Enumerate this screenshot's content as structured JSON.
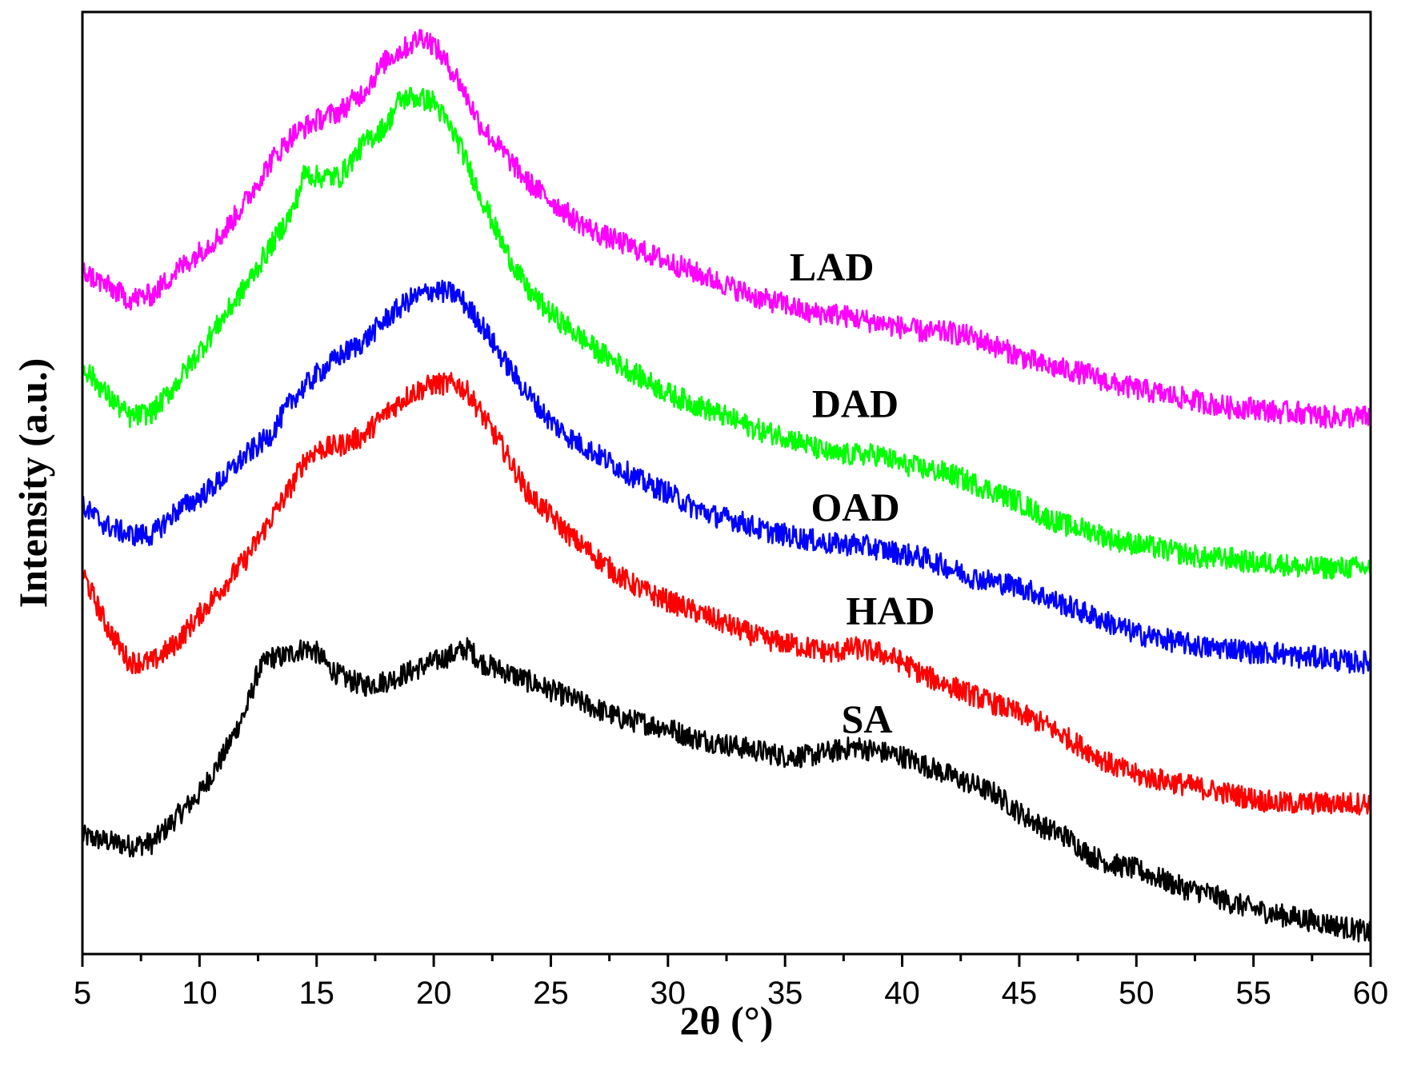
{
  "chart_data": {
    "type": "line",
    "title": "",
    "xlabel": "2θ (°)",
    "ylabel": "Intensity (a.u.)",
    "xlim": [
      5,
      60
    ],
    "ylim": [
      0,
      100
    ],
    "xticks": [
      "5",
      "10",
      "15",
      "20",
      "25",
      "30",
      "35",
      "40",
      "45",
      "50",
      "55",
      "60"
    ],
    "grid": false,
    "series": [
      {
        "name": "SA",
        "color": "#000000",
        "label_x": 38.5,
        "label_y": 23.5,
        "x": [
          5,
          6,
          7,
          8,
          9,
          10,
          11,
          12,
          12.5,
          13,
          13.5,
          14,
          14.5,
          15,
          15.5,
          16,
          17,
          18,
          19,
          20,
          21,
          21.5,
          22,
          23,
          24,
          25,
          26,
          27,
          28,
          29,
          30,
          31,
          32,
          33,
          34,
          35,
          36,
          37,
          38,
          39,
          40,
          41,
          42,
          43,
          44,
          45,
          46,
          47,
          48,
          49,
          50,
          51,
          52,
          53,
          54,
          55,
          56,
          57,
          58,
          59,
          60
        ],
        "y": [
          12.5,
          12.0,
          11.5,
          11.8,
          14.5,
          17.0,
          21.0,
          26.0,
          30.0,
          31.5,
          31.5,
          32.0,
          32.5,
          32.0,
          30.5,
          29.5,
          28.5,
          29.0,
          30.0,
          31.0,
          32.0,
          32.5,
          31.0,
          30.0,
          29.0,
          28.0,
          27.0,
          26.0,
          25.0,
          24.5,
          24.0,
          23.0,
          22.5,
          22.0,
          21.5,
          21.0,
          21.0,
          21.5,
          22.0,
          21.5,
          21.0,
          20.0,
          19.0,
          18.0,
          17.0,
          15.0,
          13.5,
          12.5,
          10.5,
          9.5,
          9.0,
          8.0,
          7.0,
          6.5,
          5.5,
          4.8,
          4.2,
          3.8,
          3.3,
          2.8,
          2.2
        ]
      },
      {
        "name": "HAD",
        "color": "#ff0000",
        "label_x": 39.5,
        "label_y": 35.0,
        "x": [
          5,
          6,
          7,
          8,
          9,
          10,
          11,
          12,
          13,
          14,
          14.5,
          15,
          16,
          17,
          18,
          19,
          20,
          21,
          21.5,
          22,
          23,
          24,
          25,
          26,
          27,
          28,
          29,
          30,
          31,
          32,
          33,
          34,
          35,
          36,
          37,
          38,
          39,
          40,
          41,
          42,
          43,
          44,
          45,
          46,
          47,
          48,
          49,
          50,
          51,
          52,
          53,
          54,
          55,
          56,
          57,
          58,
          59,
          60
        ],
        "y": [
          40.5,
          35.0,
          31.0,
          31.0,
          33.0,
          36.0,
          39.0,
          42.0,
          46.0,
          50.0,
          52.5,
          53.5,
          54.0,
          55.0,
          57.5,
          59.5,
          60.5,
          60.5,
          59.5,
          57.5,
          53.5,
          49.0,
          46.5,
          44.0,
          42.0,
          40.0,
          38.5,
          37.5,
          36.5,
          35.5,
          34.5,
          33.5,
          33.0,
          32.5,
          32.0,
          32.5,
          32.0,
          31.0,
          29.5,
          28.5,
          27.5,
          26.5,
          25.5,
          24.5,
          23.0,
          21.5,
          20.0,
          19.0,
          18.5,
          18.0,
          17.5,
          17.0,
          16.5,
          16.0,
          16.0,
          16.0,
          16.0,
          16.0
        ]
      },
      {
        "name": "OAD",
        "color": "#0000ff",
        "label_x": 38.0,
        "label_y": 46.0,
        "x": [
          5,
          6,
          7,
          8,
          9,
          10,
          11,
          12,
          13,
          14,
          15,
          16,
          17,
          18,
          19,
          20,
          21,
          22,
          23,
          24,
          25,
          26,
          27,
          28,
          29,
          30,
          31,
          32,
          33,
          34,
          35,
          36,
          37,
          38,
          39,
          40,
          41,
          42,
          43,
          44,
          45,
          46,
          47,
          48,
          49,
          50,
          51,
          52,
          53,
          54,
          55,
          56,
          57,
          58,
          59,
          60
        ],
        "y": [
          47.5,
          45.5,
          44.5,
          44.5,
          47.0,
          48.5,
          50.5,
          53.0,
          55.0,
          59.0,
          61.5,
          63.5,
          65.0,
          67.5,
          69.5,
          70.5,
          70.0,
          67.0,
          63.0,
          59.5,
          56.5,
          54.5,
          53.0,
          51.5,
          50.0,
          49.0,
          47.5,
          46.5,
          46.0,
          45.0,
          44.5,
          44.0,
          43.5,
          43.5,
          43.0,
          42.5,
          42.0,
          41.0,
          40.0,
          39.5,
          39.0,
          38.0,
          37.0,
          36.0,
          35.0,
          34.0,
          33.5,
          33.0,
          32.5,
          32.5,
          32.0,
          32.0,
          31.5,
          31.5,
          31.0,
          31.0
        ]
      },
      {
        "name": "DAD",
        "color": "#00ff00",
        "label_x": 38.0,
        "label_y": 57.0,
        "x": [
          5,
          6,
          7,
          8,
          9,
          10,
          11,
          12,
          13,
          14,
          14.5,
          15,
          16,
          17,
          18,
          18.5,
          19,
          20,
          21,
          22,
          23,
          24,
          25,
          26,
          27,
          28,
          29,
          30,
          31,
          32,
          33,
          34,
          35,
          36,
          37,
          38,
          39,
          40,
          41,
          42,
          43,
          44,
          45,
          46,
          47,
          48,
          49,
          50,
          51,
          52,
          53,
          54,
          55,
          56,
          57,
          58,
          59,
          60
        ],
        "y": [
          62.5,
          59.5,
          57.0,
          57.5,
          60.5,
          64.0,
          67.5,
          71.0,
          75.0,
          79.0,
          83.0,
          82.5,
          82.5,
          86.0,
          88.0,
          90.5,
          91.0,
          90.5,
          86.5,
          80.5,
          75.0,
          70.5,
          68.0,
          66.0,
          64.0,
          62.5,
          61.0,
          59.5,
          58.5,
          57.5,
          56.5,
          55.5,
          55.0,
          54.0,
          53.0,
          53.0,
          53.0,
          52.0,
          51.5,
          51.0,
          50.0,
          49.0,
          48.0,
          46.5,
          45.5,
          45.0,
          44.0,
          43.5,
          43.0,
          42.5,
          42.0,
          42.0,
          41.5,
          41.5,
          41.0,
          41.0,
          41.0,
          41.0
        ]
      },
      {
        "name": "LAD",
        "color": "#ff00ff",
        "label_x": 37.0,
        "label_y": 71.5,
        "x": [
          5,
          6,
          7,
          8,
          9,
          10,
          11,
          12,
          13,
          14,
          15,
          16,
          17,
          18,
          19,
          19.5,
          20,
          21,
          22,
          23,
          24,
          25,
          26,
          27,
          28,
          29,
          30,
          31,
          32,
          33,
          34,
          35,
          36,
          37,
          38,
          39,
          40,
          41,
          42,
          43,
          44,
          45,
          46,
          47,
          48,
          49,
          50,
          51,
          52,
          53,
          54,
          55,
          56,
          57,
          58,
          59,
          60
        ],
        "y": [
          72.5,
          71.0,
          69.5,
          70.0,
          72.5,
          74.5,
          76.5,
          80.0,
          84.0,
          87.0,
          88.5,
          89.5,
          91.5,
          95.0,
          96.5,
          97.5,
          96.5,
          93.0,
          88.0,
          85.0,
          82.0,
          80.0,
          78.0,
          76.5,
          75.5,
          74.5,
          73.5,
          72.5,
          71.5,
          70.5,
          69.5,
          69.0,
          68.0,
          68.0,
          67.5,
          67.0,
          66.5,
          66.0,
          66.0,
          65.5,
          64.5,
          63.5,
          62.5,
          62.0,
          61.5,
          60.5,
          60.0,
          59.5,
          59.0,
          58.5,
          58.0,
          58.0,
          57.5,
          57.5,
          57.0,
          57.0,
          57.0
        ]
      }
    ]
  }
}
